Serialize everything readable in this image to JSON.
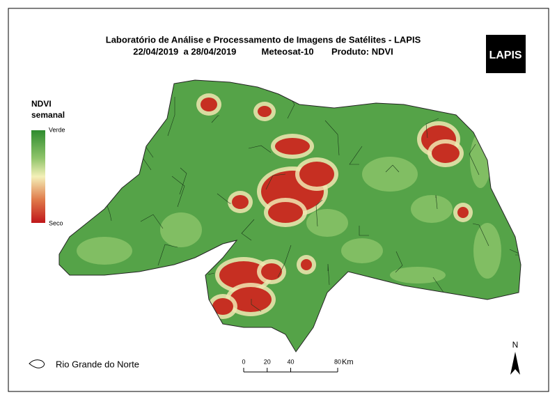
{
  "header": {
    "title": "Laboratório de Análise e Processamento de Imagens de Satélites - LAPIS",
    "subtitle": "22/04/2019  a 28/04/2019          Meteosat-10       Produto: NDVI"
  },
  "logo": "LAPIS",
  "legend": {
    "title_line1": "NDVI",
    "title_line2": "semanal",
    "high": "Verde",
    "low": "Seco"
  },
  "inset_label": "Rio Grande do Norte",
  "scale_bar": {
    "ticks": [
      0,
      20,
      40,
      80
    ],
    "unit": "Km"
  },
  "north": "N"
}
